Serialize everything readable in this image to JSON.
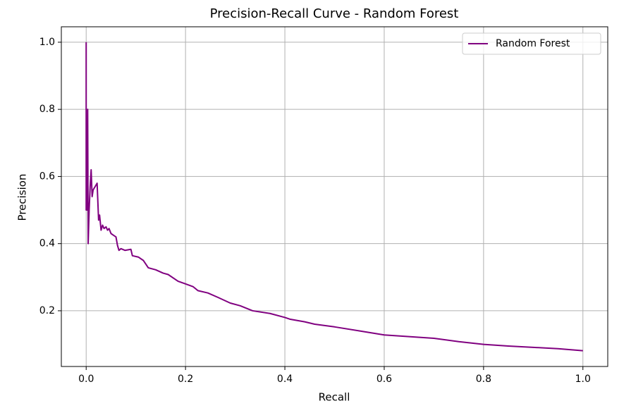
{
  "chart_data": {
    "type": "line",
    "title": "Precision-Recall Curve - Random Forest",
    "xlabel": "Recall",
    "ylabel": "Precision",
    "x": [
      0,
      0,
      0.002,
      0.003,
      0.004,
      0.006,
      0.008,
      0.01,
      0.012,
      0.014,
      0.018,
      0.022,
      0.025,
      0.027,
      0.03,
      0.033,
      0.036,
      0.04,
      0.043,
      0.046,
      0.05,
      0.055,
      0.06,
      0.063,
      0.066,
      0.07,
      0.078,
      0.09,
      0.093,
      0.105,
      0.115,
      0.125,
      0.14,
      0.155,
      0.165,
      0.185,
      0.2,
      0.215,
      0.225,
      0.245,
      0.265,
      0.29,
      0.31,
      0.335,
      0.37,
      0.4,
      0.41,
      0.44,
      0.46,
      0.5,
      0.55,
      0.6,
      0.7,
      0.75,
      0.8,
      0.85,
      0.9,
      0.95,
      1.0
    ],
    "series": [
      {
        "name": "Random Forest",
        "color": "#800080",
        "values": [
          1.0,
          0.5,
          0.5,
          0.8,
          0.4,
          0.5,
          0.57,
          0.62,
          0.54,
          0.56,
          0.57,
          0.58,
          0.47,
          0.485,
          0.44,
          0.455,
          0.445,
          0.45,
          0.44,
          0.445,
          0.43,
          0.425,
          0.42,
          0.395,
          0.38,
          0.385,
          0.38,
          0.383,
          0.364,
          0.36,
          0.35,
          0.328,
          0.322,
          0.312,
          0.308,
          0.288,
          0.28,
          0.272,
          0.26,
          0.253,
          0.24,
          0.223,
          0.215,
          0.2,
          0.192,
          0.18,
          0.175,
          0.167,
          0.16,
          0.152,
          0.14,
          0.128,
          0.118,
          0.108,
          0.1,
          0.095,
          0.091,
          0.087,
          0.081
        ]
      }
    ],
    "xlim": [
      -0.05,
      1.05
    ],
    "ylim": [
      0.034,
      1.046
    ],
    "xticks": [
      {
        "value": 0,
        "label": "0.0"
      },
      0.2,
      0.4,
      0.6,
      0.8,
      {
        "value": 1,
        "label": "1.0"
      }
    ],
    "yticks": [
      0.2,
      0.4,
      0.6,
      0.8,
      {
        "value": 1,
        "label": "1.0"
      }
    ],
    "grid": true,
    "legend": "upper right"
  }
}
